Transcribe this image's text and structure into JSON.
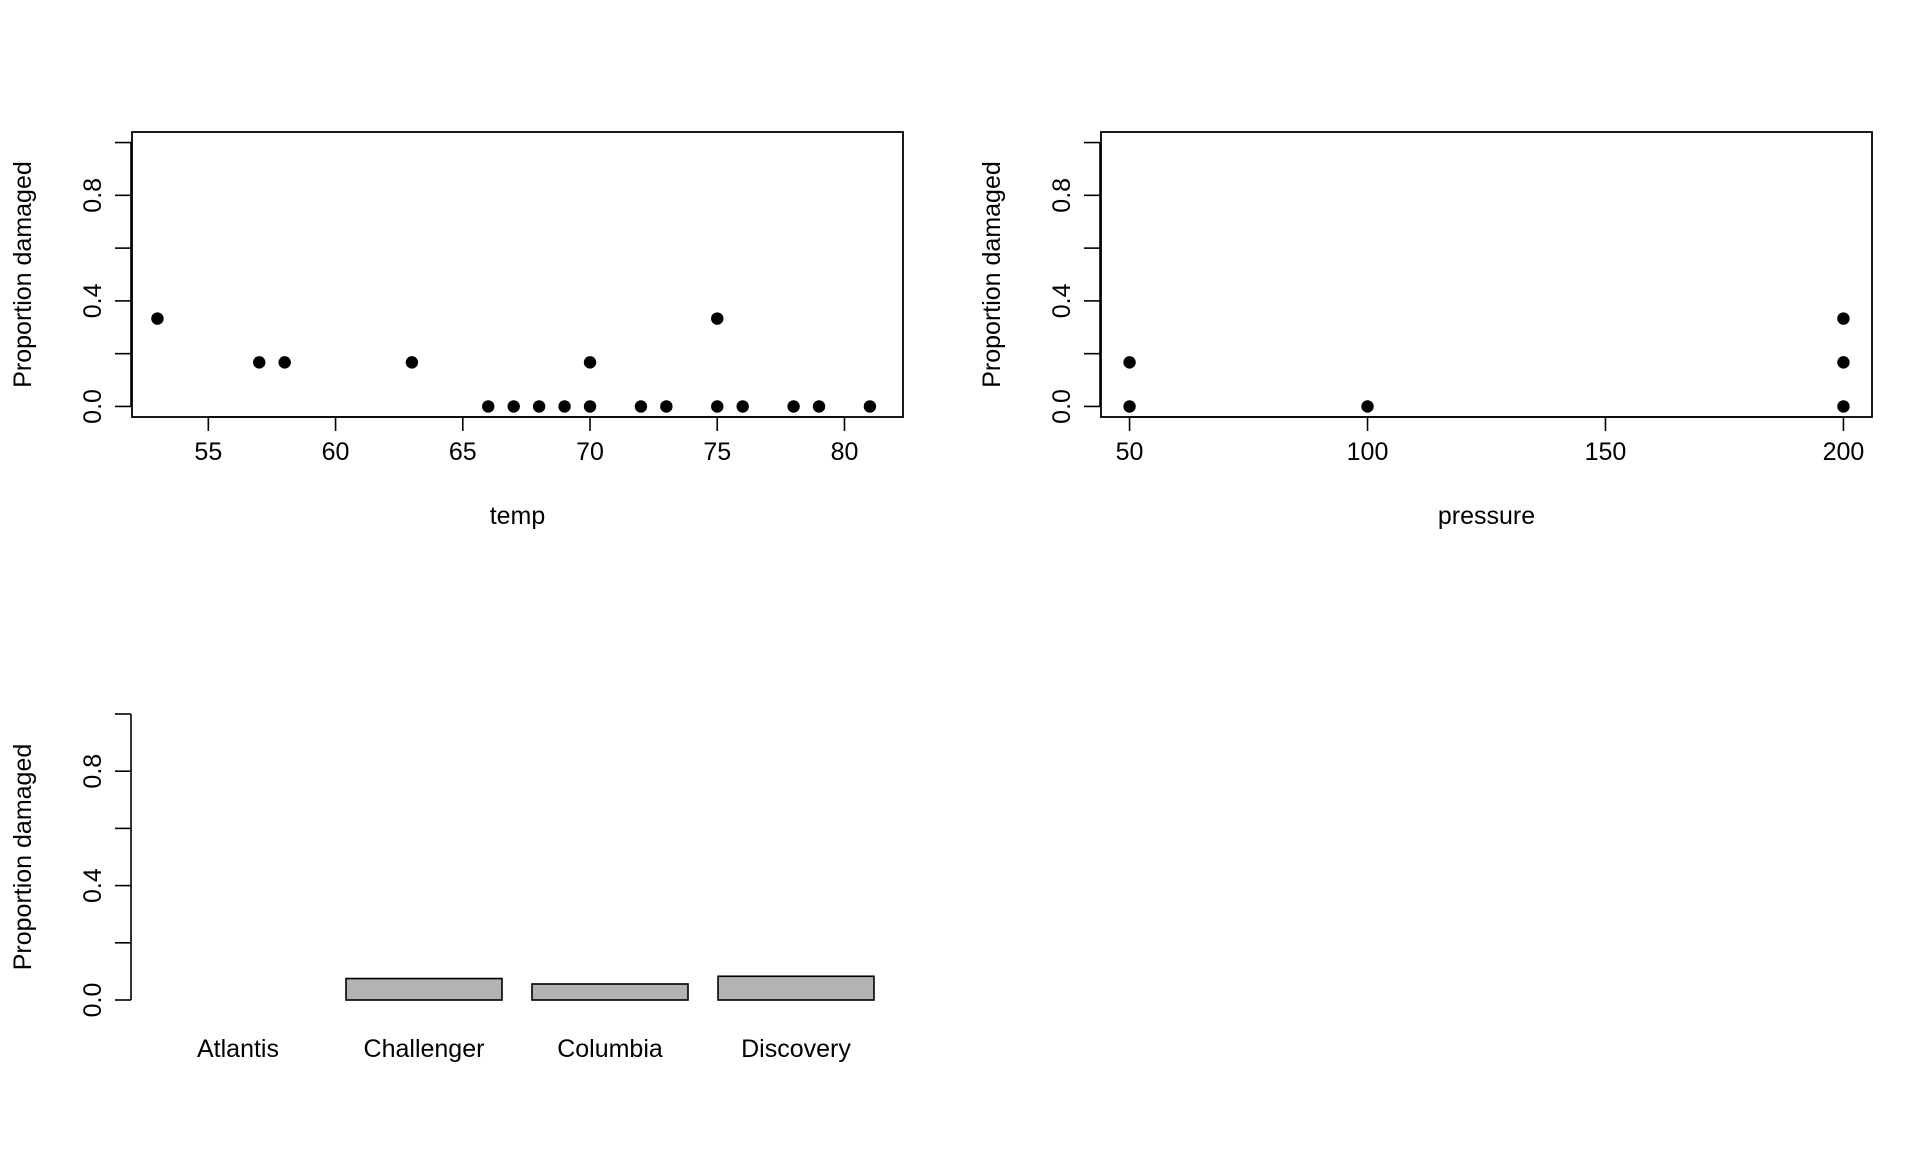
{
  "chart_data": [
    {
      "type": "scatter",
      "xlabel": "temp",
      "ylabel": "Proportion damaged",
      "xlim": [
        52,
        82.3
      ],
      "ylim": [
        -0.04,
        1.04
      ],
      "xticks": [
        55,
        60,
        65,
        70,
        75,
        80
      ],
      "yticks": [
        0.0,
        0.2,
        0.4,
        0.6,
        0.8,
        1.0
      ],
      "ytick_labels": [
        "0.0",
        "",
        "0.4",
        "",
        "0.8",
        ""
      ],
      "grid": false,
      "points": [
        {
          "x": 53,
          "y": 0.333
        },
        {
          "x": 57,
          "y": 0.167
        },
        {
          "x": 58,
          "y": 0.167
        },
        {
          "x": 63,
          "y": 0.167
        },
        {
          "x": 66,
          "y": 0.0
        },
        {
          "x": 67,
          "y": 0.0
        },
        {
          "x": 68,
          "y": 0.0
        },
        {
          "x": 69,
          "y": 0.0
        },
        {
          "x": 70,
          "y": 0.0
        },
        {
          "x": 70,
          "y": 0.167
        },
        {
          "x": 72,
          "y": 0.0
        },
        {
          "x": 73,
          "y": 0.0
        },
        {
          "x": 75,
          "y": 0.0
        },
        {
          "x": 75,
          "y": 0.333
        },
        {
          "x": 76,
          "y": 0.0
        },
        {
          "x": 78,
          "y": 0.0
        },
        {
          "x": 79,
          "y": 0.0
        },
        {
          "x": 81,
          "y": 0.0
        }
      ]
    },
    {
      "type": "scatter",
      "xlabel": "pressure",
      "ylabel": "Proportion damaged",
      "xlim": [
        44,
        206
      ],
      "ylim": [
        -0.04,
        1.04
      ],
      "xticks": [
        50,
        100,
        150,
        200
      ],
      "yticks": [
        0.0,
        0.2,
        0.4,
        0.6,
        0.8,
        1.0
      ],
      "ytick_labels": [
        "0.0",
        "",
        "0.4",
        "",
        "0.8",
        ""
      ],
      "grid": false,
      "points": [
        {
          "x": 50,
          "y": 0.167
        },
        {
          "x": 50,
          "y": 0.0
        },
        {
          "x": 100,
          "y": 0.0
        },
        {
          "x": 200,
          "y": 0.333
        },
        {
          "x": 200,
          "y": 0.167
        },
        {
          "x": 200,
          "y": 0.0
        }
      ]
    },
    {
      "type": "bar",
      "ylabel": "Proportion damaged",
      "categories": [
        "Atlantis",
        "Challenger",
        "Columbia",
        "Discovery"
      ],
      "values": [
        0.0,
        0.075,
        0.056,
        0.083
      ],
      "ylim": [
        0,
        1.0
      ],
      "yticks": [
        0.0,
        0.2,
        0.4,
        0.6,
        0.8,
        1.0
      ],
      "ytick_labels": [
        "0.0",
        "",
        "0.4",
        "",
        "0.8",
        ""
      ],
      "bar_color": "#b3b3b3",
      "grid": false
    }
  ]
}
